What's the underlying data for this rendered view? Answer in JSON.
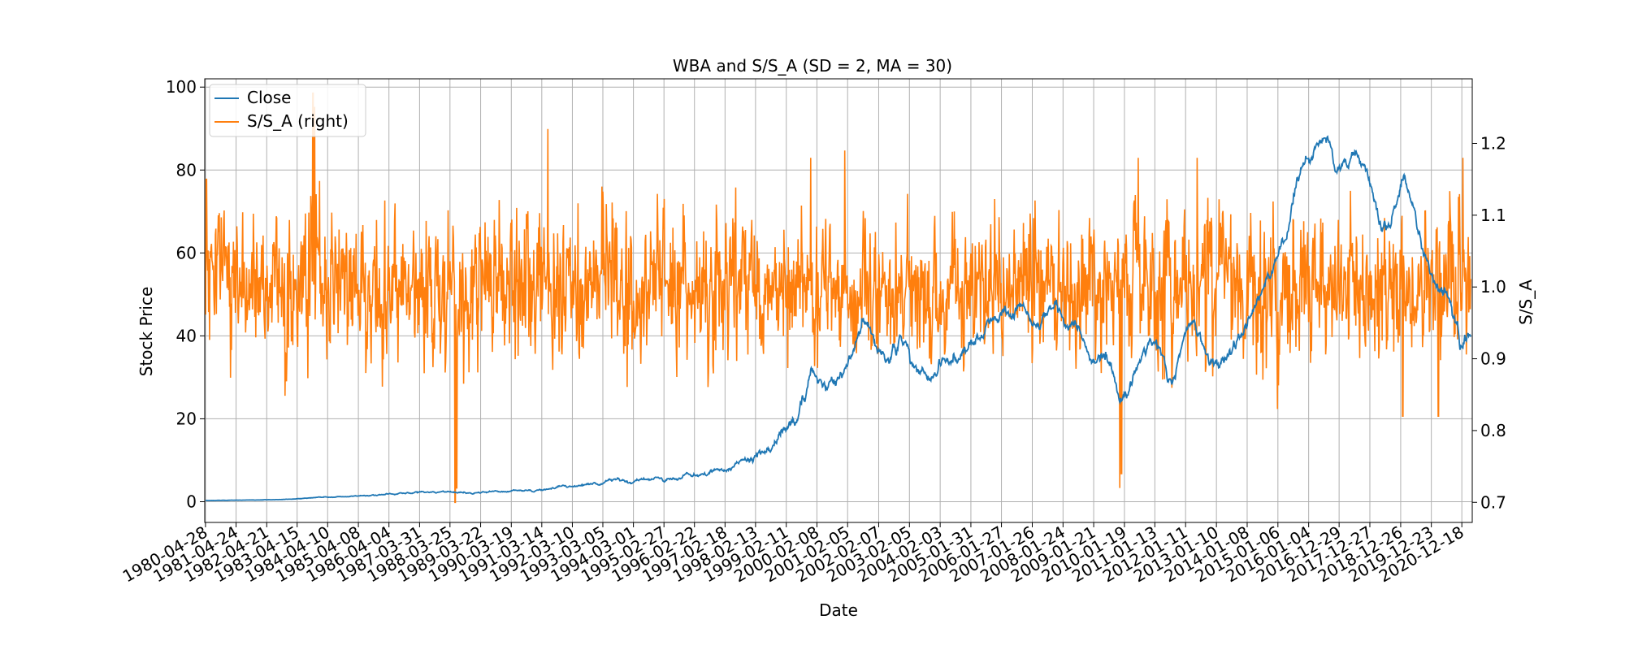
{
  "chart_data": {
    "type": "line",
    "title": "WBA and S/S_A (SD = 2, MA = 30)",
    "xlabel": "Date",
    "ylabel": "Stock Price",
    "ylabel_right": "S/S_A",
    "grid": true,
    "legend_position": "top-left",
    "x_range": [
      1980.3,
      2021.3
    ],
    "ylim": [
      -5,
      102
    ],
    "ylim_right": [
      0.672,
      1.29
    ],
    "yticks": [
      0,
      20,
      40,
      60,
      80,
      100
    ],
    "yticks_right": [
      0.7,
      0.8,
      0.9,
      1.0,
      1.1,
      1.2
    ],
    "ytick_labels_right": [
      "0.7",
      "0.8",
      "0.9",
      "1.0",
      "1.1",
      "1.2"
    ],
    "xtick_labels": [
      "1980-04-28",
      "1981-04-24",
      "1982-04-21",
      "1983-04-15",
      "1984-04-10",
      "1985-04-08",
      "1986-04-04",
      "1987-03-31",
      "1988-03-25",
      "1989-03-22",
      "1990-03-19",
      "1991-03-14",
      "1992-03-10",
      "1993-03-05",
      "1994-03-01",
      "1995-02-27",
      "1996-02-22",
      "1997-02-18",
      "1998-02-13",
      "1999-02-11",
      "2000-02-08",
      "2001-02-05",
      "2002-02-07",
      "2003-02-05",
      "2004-02-03",
      "2005-01-31",
      "2006-01-27",
      "2007-01-26",
      "2008-01-24",
      "2009-01-21",
      "2010-01-19",
      "2011-01-13",
      "2012-01-11",
      "2013-01-10",
      "2014-01-08",
      "2015-01-06",
      "2016-01-04",
      "2016-12-29",
      "2017-12-27",
      "2018-12-26",
      "2019-12-23",
      "2020-12-18"
    ],
    "series": [
      {
        "name": "Close",
        "axis": "left",
        "color": "#1f77b4",
        "x": [
          1980.33,
          1981,
          1982,
          1983,
          1984,
          1985,
          1986,
          1987,
          1988,
          1988.9,
          1989.5,
          1990.5,
          1991.5,
          1992.5,
          1993.5,
          1994.5,
          1995.5,
          1996.5,
          1997.3,
          1998,
          1998.6,
          1999,
          1999.5,
          1999.9,
          2000.3,
          2000.7,
          2001.1,
          2001.6,
          2001.9,
          2002.3,
          2002.8,
          2003.3,
          2003.8,
          2004.3,
          2004.8,
          2005.3,
          2005.9,
          2006.4,
          2006.9,
          2007.3,
          2007.8,
          2008.2,
          2008.6,
          2008.9,
          2009.2,
          2009.5,
          2009.9,
          2010.3,
          2010.8,
          2011.2,
          2011.6,
          2011.9,
          2012.3,
          2012.8,
          2013.3,
          2013.8,
          2014.3,
          2014.7,
          2015.0,
          2015.3,
          2015.6,
          2015.9,
          2016.3,
          2016.6,
          2016.9,
          2017.3,
          2017.6,
          2017.9,
          2018.2,
          2018.5,
          2018.8,
          2019.1,
          2019.4,
          2019.7,
          2020.0,
          2020.3,
          2020.6,
          2020.9,
          2021.2
        ],
        "y": [
          0.3,
          0.35,
          0.4,
          0.6,
          1.0,
          1.3,
          1.7,
          2.2,
          2.6,
          2.0,
          2.3,
          2.6,
          3.2,
          4.0,
          5.0,
          5.3,
          5.5,
          7.0,
          8.5,
          11,
          13.5,
          17,
          22,
          30,
          26,
          28,
          33,
          44,
          40,
          35,
          38,
          33,
          30,
          33,
          36,
          40,
          44,
          46,
          47,
          45,
          47,
          44,
          42,
          36,
          34,
          36,
          25,
          30,
          38,
          35,
          28,
          38,
          44,
          33,
          34,
          40,
          47,
          55,
          60,
          65,
          75,
          82,
          86,
          88,
          80,
          82,
          84,
          80,
          70,
          65,
          70,
          80,
          72,
          62,
          55,
          52,
          48,
          38,
          42
        ],
        "extra_noise": 1.0
      },
      {
        "name": "S/S_A (right)",
        "axis": "right",
        "color": "#ff7f0e",
        "center": 1.0,
        "noise_sd": 0.045,
        "spikes": [
          {
            "t": 1980.35,
            "v": 1.15
          },
          {
            "t": 1983.8,
            "v": 1.27
          },
          {
            "t": 1983.85,
            "v": 1.25
          },
          {
            "t": 1988.4,
            "v": 0.7
          },
          {
            "t": 1988.45,
            "v": 0.72
          },
          {
            "t": 1991.4,
            "v": 1.22
          },
          {
            "t": 1999.9,
            "v": 1.18
          },
          {
            "t": 2001.0,
            "v": 1.19
          },
          {
            "t": 2009.9,
            "v": 0.72
          },
          {
            "t": 2009.95,
            "v": 0.74
          },
          {
            "t": 2010.5,
            "v": 1.18
          },
          {
            "t": 2012.4,
            "v": 1.18
          },
          {
            "t": 2015.0,
            "v": 0.83
          },
          {
            "t": 2019.05,
            "v": 0.82
          },
          {
            "t": 2020.2,
            "v": 0.82
          },
          {
            "t": 2021.0,
            "v": 1.18
          }
        ]
      }
    ]
  }
}
